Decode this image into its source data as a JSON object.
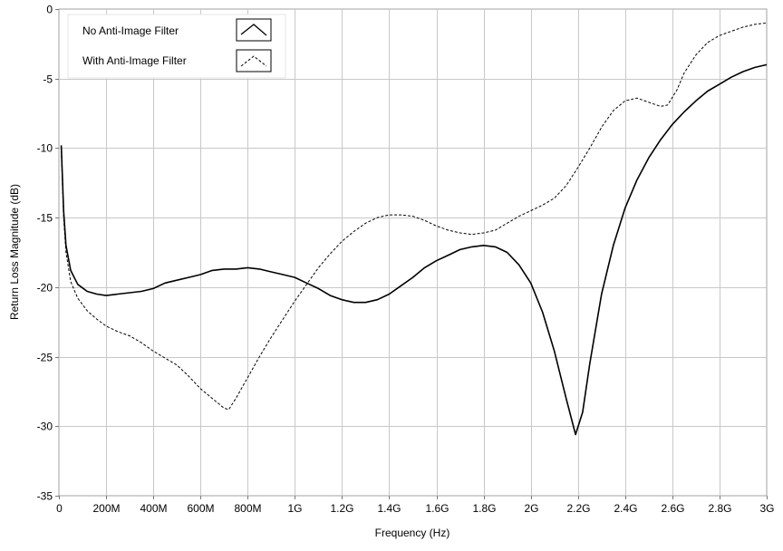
{
  "chart_data": {
    "type": "line",
    "title": "",
    "xlabel": "Frequency (Hz)",
    "ylabel": "Return Loss Magnitude (dB)",
    "xlim": [
      0,
      3000000000
    ],
    "ylim": [
      -35,
      0
    ],
    "grid": true,
    "legend_position": "top-left",
    "x_ticks": [
      {
        "value": 0,
        "label": "0"
      },
      {
        "value": 200000000,
        "label": "200M"
      },
      {
        "value": 400000000,
        "label": "400M"
      },
      {
        "value": 600000000,
        "label": "600M"
      },
      {
        "value": 800000000,
        "label": "800M"
      },
      {
        "value": 1000000000,
        "label": "1G"
      },
      {
        "value": 1200000000,
        "label": "1.2G"
      },
      {
        "value": 1400000000,
        "label": "1.4G"
      },
      {
        "value": 1600000000,
        "label": "1.6G"
      },
      {
        "value": 1800000000,
        "label": "1.8G"
      },
      {
        "value": 2000000000,
        "label": "2G"
      },
      {
        "value": 2200000000,
        "label": "2.2G"
      },
      {
        "value": 2400000000,
        "label": "2.4G"
      },
      {
        "value": 2600000000,
        "label": "2.6G"
      },
      {
        "value": 2800000000,
        "label": "2.8G"
      },
      {
        "value": 3000000000,
        "label": "3G"
      }
    ],
    "y_ticks": [
      {
        "value": 0,
        "label": "0"
      },
      {
        "value": -5,
        "label": "-5"
      },
      {
        "value": -10,
        "label": "-10"
      },
      {
        "value": -15,
        "label": "-15"
      },
      {
        "value": -20,
        "label": "-20"
      },
      {
        "value": -25,
        "label": "-25"
      },
      {
        "value": -30,
        "label": "-30"
      },
      {
        "value": -35,
        "label": "-35"
      }
    ],
    "series": [
      {
        "name": "No Anti-Image Filter",
        "style": "solid",
        "color": "#000000",
        "points": [
          [
            10000000,
            -9.8
          ],
          [
            20000000,
            -14.5
          ],
          [
            30000000,
            -17.0
          ],
          [
            50000000,
            -18.8
          ],
          [
            80000000,
            -19.8
          ],
          [
            120000000,
            -20.3
          ],
          [
            160000000,
            -20.5
          ],
          [
            200000000,
            -20.6
          ],
          [
            250000000,
            -20.5
          ],
          [
            300000000,
            -20.4
          ],
          [
            350000000,
            -20.3
          ],
          [
            400000000,
            -20.1
          ],
          [
            450000000,
            -19.7
          ],
          [
            500000000,
            -19.5
          ],
          [
            550000000,
            -19.3
          ],
          [
            600000000,
            -19.1
          ],
          [
            650000000,
            -18.8
          ],
          [
            700000000,
            -18.7
          ],
          [
            750000000,
            -18.7
          ],
          [
            800000000,
            -18.6
          ],
          [
            850000000,
            -18.7
          ],
          [
            900000000,
            -18.9
          ],
          [
            950000000,
            -19.1
          ],
          [
            1000000000,
            -19.3
          ],
          [
            1050000000,
            -19.7
          ],
          [
            1100000000,
            -20.1
          ],
          [
            1150000000,
            -20.6
          ],
          [
            1200000000,
            -20.9
          ],
          [
            1250000000,
            -21.1
          ],
          [
            1300000000,
            -21.1
          ],
          [
            1350000000,
            -20.9
          ],
          [
            1400000000,
            -20.5
          ],
          [
            1450000000,
            -19.9
          ],
          [
            1500000000,
            -19.3
          ],
          [
            1550000000,
            -18.6
          ],
          [
            1600000000,
            -18.1
          ],
          [
            1650000000,
            -17.7
          ],
          [
            1700000000,
            -17.3
          ],
          [
            1750000000,
            -17.1
          ],
          [
            1800000000,
            -17.0
          ],
          [
            1850000000,
            -17.1
          ],
          [
            1900000000,
            -17.5
          ],
          [
            1950000000,
            -18.4
          ],
          [
            2000000000,
            -19.7
          ],
          [
            2050000000,
            -21.8
          ],
          [
            2100000000,
            -24.6
          ],
          [
            2150000000,
            -28.0
          ],
          [
            2190000000,
            -30.6
          ],
          [
            2220000000,
            -29.0
          ],
          [
            2250000000,
            -25.5
          ],
          [
            2300000000,
            -20.5
          ],
          [
            2350000000,
            -17.0
          ],
          [
            2400000000,
            -14.3
          ],
          [
            2450000000,
            -12.3
          ],
          [
            2500000000,
            -10.7
          ],
          [
            2550000000,
            -9.4
          ],
          [
            2600000000,
            -8.3
          ],
          [
            2650000000,
            -7.4
          ],
          [
            2700000000,
            -6.6
          ],
          [
            2750000000,
            -5.9
          ],
          [
            2800000000,
            -5.4
          ],
          [
            2850000000,
            -4.9
          ],
          [
            2900000000,
            -4.5
          ],
          [
            2950000000,
            -4.2
          ],
          [
            3000000000,
            -4.0
          ]
        ]
      },
      {
        "name": "With Anti-Image Filter",
        "style": "dashed",
        "color": "#000000",
        "points": [
          [
            10000000,
            -10.2
          ],
          [
            20000000,
            -15.0
          ],
          [
            30000000,
            -17.5
          ],
          [
            50000000,
            -19.6
          ],
          [
            80000000,
            -20.8
          ],
          [
            120000000,
            -21.7
          ],
          [
            160000000,
            -22.3
          ],
          [
            200000000,
            -22.8
          ],
          [
            250000000,
            -23.2
          ],
          [
            300000000,
            -23.5
          ],
          [
            350000000,
            -24.0
          ],
          [
            400000000,
            -24.6
          ],
          [
            450000000,
            -25.1
          ],
          [
            500000000,
            -25.6
          ],
          [
            550000000,
            -26.4
          ],
          [
            600000000,
            -27.3
          ],
          [
            650000000,
            -28.0
          ],
          [
            700000000,
            -28.7
          ],
          [
            720000000,
            -28.8
          ],
          [
            750000000,
            -28.0
          ],
          [
            800000000,
            -26.5
          ],
          [
            850000000,
            -25.0
          ],
          [
            900000000,
            -23.6
          ],
          [
            950000000,
            -22.3
          ],
          [
            1000000000,
            -21.0
          ],
          [
            1050000000,
            -19.8
          ],
          [
            1100000000,
            -18.6
          ],
          [
            1150000000,
            -17.6
          ],
          [
            1200000000,
            -16.7
          ],
          [
            1250000000,
            -16.0
          ],
          [
            1300000000,
            -15.4
          ],
          [
            1350000000,
            -15.0
          ],
          [
            1400000000,
            -14.8
          ],
          [
            1450000000,
            -14.8
          ],
          [
            1500000000,
            -14.9
          ],
          [
            1550000000,
            -15.2
          ],
          [
            1600000000,
            -15.6
          ],
          [
            1650000000,
            -15.9
          ],
          [
            1700000000,
            -16.1
          ],
          [
            1750000000,
            -16.2
          ],
          [
            1800000000,
            -16.1
          ],
          [
            1850000000,
            -15.9
          ],
          [
            1900000000,
            -15.4
          ],
          [
            1950000000,
            -14.9
          ],
          [
            2000000000,
            -14.5
          ],
          [
            2050000000,
            -14.1
          ],
          [
            2100000000,
            -13.6
          ],
          [
            2150000000,
            -12.7
          ],
          [
            2200000000,
            -11.4
          ],
          [
            2250000000,
            -10.0
          ],
          [
            2300000000,
            -8.5
          ],
          [
            2350000000,
            -7.3
          ],
          [
            2400000000,
            -6.6
          ],
          [
            2450000000,
            -6.4
          ],
          [
            2500000000,
            -6.7
          ],
          [
            2550000000,
            -7.0
          ],
          [
            2580000000,
            -6.9
          ],
          [
            2620000000,
            -5.8
          ],
          [
            2650000000,
            -4.6
          ],
          [
            2700000000,
            -3.3
          ],
          [
            2750000000,
            -2.4
          ],
          [
            2800000000,
            -1.9
          ],
          [
            2850000000,
            -1.6
          ],
          [
            2900000000,
            -1.3
          ],
          [
            2950000000,
            -1.1
          ],
          [
            3000000000,
            -1.0
          ]
        ]
      }
    ]
  }
}
